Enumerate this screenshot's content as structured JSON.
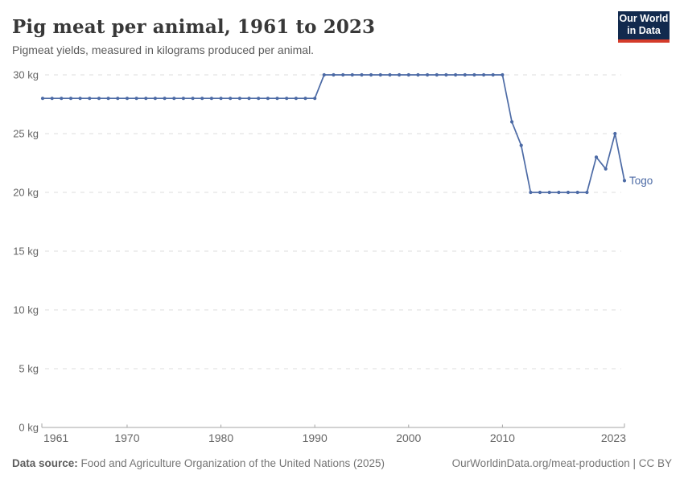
{
  "header": {
    "title": "Pig meat per animal, 1961 to 2023",
    "subtitle": "Pigmeat yields, measured in kilograms produced per animal.",
    "logo": {
      "line1": "Our World",
      "line2": "in Data"
    }
  },
  "chart_data": {
    "type": "line",
    "title": "Pig meat per animal, 1961 to 2023",
    "subtitle": "Pigmeat yields, measured in kilograms produced per animal.",
    "unit": "kg",
    "xlim": [
      1961,
      2023
    ],
    "ylim": [
      0,
      30
    ],
    "x_ticks": [
      1961,
      1970,
      1980,
      1990,
      2000,
      2010,
      2023
    ],
    "y_ticks": [
      0,
      5,
      10,
      15,
      20,
      25,
      30
    ],
    "y_tick_suffix": " kg",
    "grid": "dashed-horizontal",
    "legend_position": "end-of-line-label",
    "series": [
      {
        "name": "Togo",
        "color": "#4c6aa5",
        "x": [
          1961,
          1962,
          1963,
          1964,
          1965,
          1966,
          1967,
          1968,
          1969,
          1970,
          1971,
          1972,
          1973,
          1974,
          1975,
          1976,
          1977,
          1978,
          1979,
          1980,
          1981,
          1982,
          1983,
          1984,
          1985,
          1986,
          1987,
          1988,
          1989,
          1990,
          1991,
          1992,
          1993,
          1994,
          1995,
          1996,
          1997,
          1998,
          1999,
          2000,
          2001,
          2002,
          2003,
          2004,
          2005,
          2006,
          2007,
          2008,
          2009,
          2010,
          2011,
          2012,
          2013,
          2014,
          2015,
          2016,
          2017,
          2018,
          2019,
          2020,
          2021,
          2022,
          2023
        ],
        "values": [
          28,
          28,
          28,
          28,
          28,
          28,
          28,
          28,
          28,
          28,
          28,
          28,
          28,
          28,
          28,
          28,
          28,
          28,
          28,
          28,
          28,
          28,
          28,
          28,
          28,
          28,
          28,
          28,
          28,
          28,
          30,
          30,
          30,
          30,
          30,
          30,
          30,
          30,
          30,
          30,
          30,
          30,
          30,
          30,
          30,
          30,
          30,
          30,
          30,
          30,
          26,
          24,
          20,
          20,
          20,
          20,
          20,
          20,
          20,
          23,
          22,
          25,
          21
        ]
      }
    ],
    "end_label": "Togo"
  },
  "footer": {
    "source_label": "Data source:",
    "source_text": "Food and Agriculture Organization of the United Nations (2025)",
    "credit": "OurWorldinData.org/meat-production | CC BY"
  },
  "colors": {
    "series_blue": "#4c6aa5",
    "grid": "#dcdcdc",
    "axis": "#a5a5a5",
    "tick_label": "#666666",
    "logo_bg": "#122a4e",
    "logo_bar": "#d43b2a"
  }
}
